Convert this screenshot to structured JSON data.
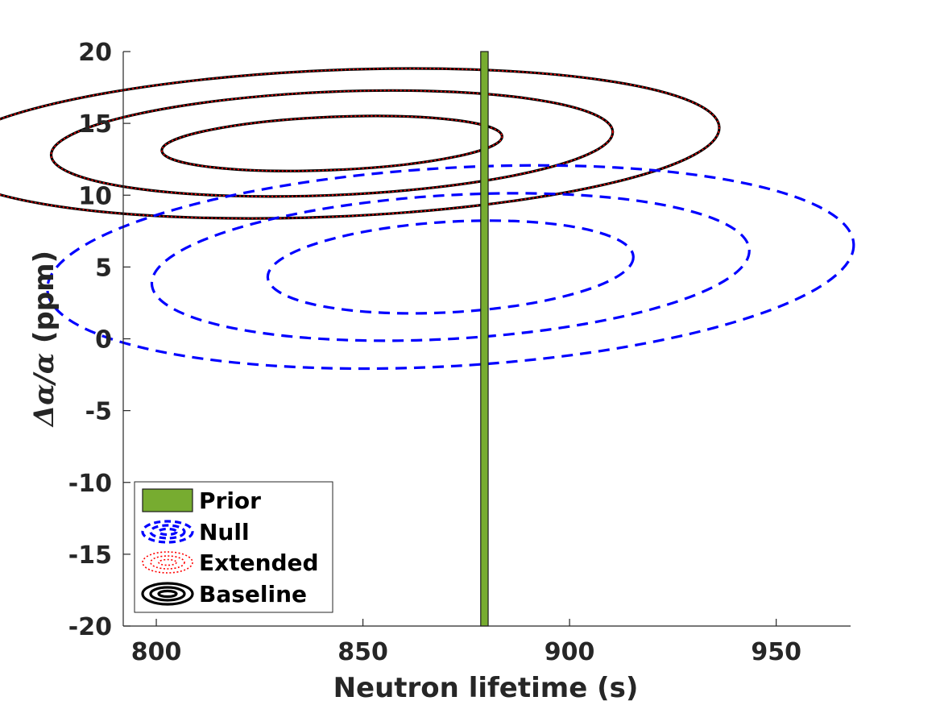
{
  "chart_data": {
    "type": "contour",
    "xlabel": "Neutron lifetime (s)",
    "ylabel_prefix": "Δα/α",
    "ylabel_suffix": " (ppm)",
    "xlim": [
      792,
      968
    ],
    "ylim": [
      -20,
      20
    ],
    "x_ticks": [
      800,
      850,
      900,
      950
    ],
    "y_ticks": [
      20,
      15,
      10,
      5,
      0,
      -5,
      -10,
      -15,
      -20
    ],
    "y_tick_labels": [
      "20",
      "15",
      "10",
      "5",
      "0",
      "-5",
      "-10",
      "-15",
      "-20"
    ],
    "prior": {
      "name": "Prior",
      "x_center": 879.4,
      "x_width": 1.8,
      "color": "#77ac30"
    },
    "series": [
      {
        "name": "Baseline",
        "color": "#000000",
        "style": "solid",
        "center": [
          842.5,
          13.6
        ],
        "contours": [
          {
            "semi_major": 41.2,
            "semi_minor": 1.85,
            "angle_deg": -2.4
          },
          {
            "semi_major": 68.0,
            "semi_minor": 3.6,
            "angle_deg": -2.4
          },
          {
            "semi_major": 93.8,
            "semi_minor": 5.1,
            "angle_deg": -2.4
          }
        ]
      },
      {
        "name": "Extended",
        "color": "#ff0000",
        "style": "dotted",
        "center": [
          842.5,
          13.6
        ],
        "contours": [
          {
            "semi_major": 41.2,
            "semi_minor": 1.85,
            "angle_deg": -2.4
          },
          {
            "semi_major": 68.0,
            "semi_minor": 3.6,
            "angle_deg": -2.4
          },
          {
            "semi_major": 93.8,
            "semi_minor": 5.1,
            "angle_deg": -2.4
          }
        ]
      },
      {
        "name": "Null",
        "color": "#0000ff",
        "style": "dashed",
        "center": [
          871.2,
          5.0
        ],
        "contours": [
          {
            "semi_major": 44.3,
            "semi_minor": 3.15,
            "angle_deg": -3.3
          },
          {
            "semi_major": 72.4,
            "semi_minor": 5.0,
            "angle_deg": -3.3
          },
          {
            "semi_major": 97.7,
            "semi_minor": 6.9,
            "angle_deg": -3.3
          }
        ]
      }
    ],
    "legend": {
      "position": "bottom-left",
      "entries": [
        "Prior",
        "Null",
        "Extended",
        "Baseline"
      ]
    },
    "grid": false
  }
}
